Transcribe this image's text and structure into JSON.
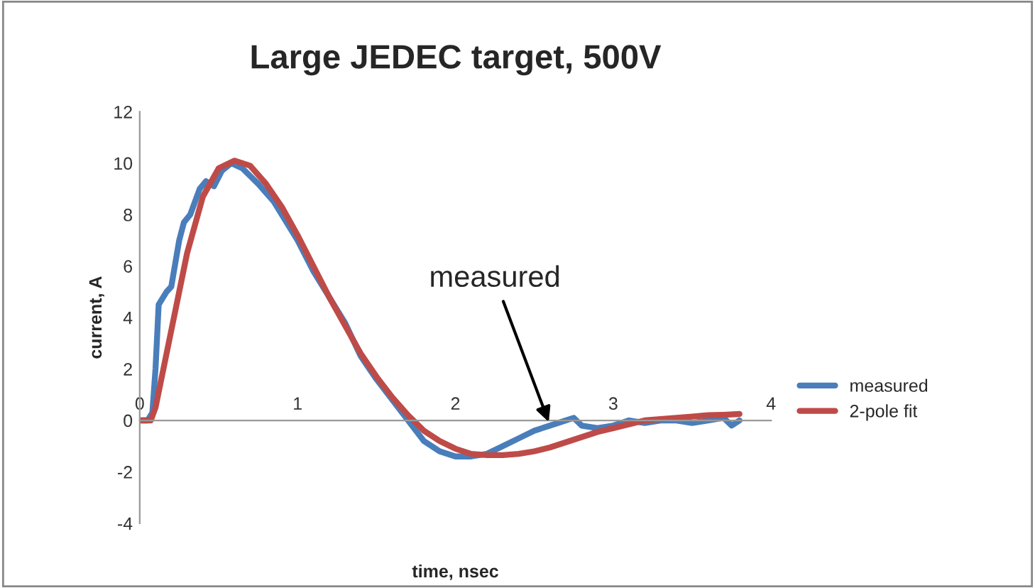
{
  "chart_data": {
    "type": "line",
    "title": "Large JEDEC target, 500V",
    "xlabel": "time, nsec",
    "ylabel": "current, A",
    "xlim": [
      0,
      4
    ],
    "xticks": [
      0,
      1,
      2,
      3,
      4
    ],
    "ylim": [
      -4,
      12
    ],
    "yticks": [
      -4,
      -2,
      0,
      2,
      4,
      6,
      8,
      10,
      12
    ],
    "grid": false,
    "legend": "right",
    "marker": "none",
    "line_style": "solid",
    "annotations": [
      {
        "text": "measured",
        "x": 2.6,
        "y": -0.2
      }
    ],
    "series": [
      {
        "name": "measured",
        "color": "#4a7ebb",
        "x": [
          0,
          0.05,
          0.08,
          0.1,
          0.12,
          0.17,
          0.2,
          0.25,
          0.28,
          0.32,
          0.38,
          0.42,
          0.47,
          0.52,
          0.58,
          0.65,
          0.7,
          0.75,
          0.85,
          1.0,
          1.1,
          1.2,
          1.3,
          1.4,
          1.5,
          1.6,
          1.7,
          1.8,
          1.9,
          2.0,
          2.1,
          2.2,
          2.3,
          2.4,
          2.5,
          2.6,
          2.7,
          2.75,
          2.8,
          2.9,
          3.0,
          3.1,
          3.2,
          3.3,
          3.4,
          3.5,
          3.6,
          3.7,
          3.75,
          3.8
        ],
        "values": [
          0,
          0,
          0.3,
          2,
          4.5,
          5,
          5.2,
          7,
          7.7,
          8,
          9,
          9.3,
          9.1,
          9.7,
          10,
          9.8,
          9.5,
          9.2,
          8.5,
          7,
          5.8,
          4.8,
          3.8,
          2.5,
          1.6,
          0.8,
          0,
          -0.8,
          -1.2,
          -1.4,
          -1.4,
          -1.3,
          -1.0,
          -0.7,
          -0.4,
          -0.2,
          0,
          0.1,
          -0.2,
          -0.3,
          -0.2,
          0,
          -0.1,
          0,
          0,
          -0.1,
          0,
          0.1,
          -0.2,
          0
        ]
      },
      {
        "name": "2-pole fit",
        "color": "#be4b48",
        "x": [
          0,
          0.07,
          0.1,
          0.2,
          0.3,
          0.4,
          0.5,
          0.6,
          0.7,
          0.8,
          0.9,
          1.0,
          1.1,
          1.2,
          1.3,
          1.4,
          1.5,
          1.6,
          1.7,
          1.8,
          1.9,
          2.0,
          2.1,
          2.2,
          2.3,
          2.4,
          2.5,
          2.6,
          2.7,
          2.8,
          2.9,
          3.0,
          3.1,
          3.2,
          3.3,
          3.4,
          3.5,
          3.6,
          3.7,
          3.8
        ],
        "values": [
          0,
          0,
          0.5,
          3.5,
          6.5,
          8.7,
          9.8,
          10.1,
          9.9,
          9.2,
          8.3,
          7.2,
          6.0,
          4.8,
          3.7,
          2.6,
          1.7,
          0.9,
          0.2,
          -0.4,
          -0.8,
          -1.1,
          -1.3,
          -1.35,
          -1.35,
          -1.3,
          -1.2,
          -1.05,
          -0.85,
          -0.65,
          -0.45,
          -0.3,
          -0.15,
          0,
          0.05,
          0.1,
          0.15,
          0.2,
          0.22,
          0.25
        ]
      }
    ]
  }
}
